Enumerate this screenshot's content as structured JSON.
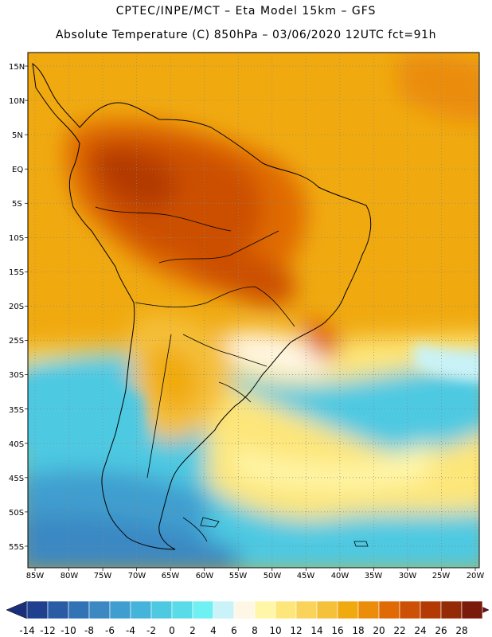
{
  "header": {
    "title_line1": "CPTEC/INPE/MCT –  Eta Model 15km – GFS",
    "title_line2": "Absolute Temperature (C) 850hPa – 03/06/2020 12UTC fct=91h"
  },
  "axes": {
    "lat_labels": [
      "15N",
      "10N",
      "5N",
      "EQ",
      "5S",
      "10S",
      "15S",
      "20S",
      "25S",
      "30S",
      "35S",
      "40S",
      "45S",
      "50S",
      "55S"
    ],
    "lon_labels": [
      "85W",
      "80W",
      "75W",
      "70W",
      "65W",
      "60W",
      "55W",
      "50W",
      "45W",
      "40W",
      "35W",
      "30W",
      "25W",
      "20W"
    ]
  },
  "colorbar": {
    "labels": [
      "-14",
      "-12",
      "-10",
      "-8",
      "-6",
      "-4",
      "-2",
      "0",
      "2",
      "4",
      "6",
      "8",
      "10",
      "12",
      "14",
      "16",
      "18",
      "20",
      "22",
      "24",
      "26",
      "28"
    ],
    "colors": [
      "#1f3f8f",
      "#2a5ca6",
      "#3173b5",
      "#3b88c3",
      "#3f9ecf",
      "#45b4da",
      "#4ec9e2",
      "#5adbe8",
      "#6ff0f2",
      "#c9f3f8",
      "#fff7e6",
      "#fff6a8",
      "#fde67a",
      "#f9d35a",
      "#f5c03a",
      "#f0aa10",
      "#eb8c0a",
      "#e06a05",
      "#cc5006",
      "#b33a05",
      "#952a06",
      "#7a1a0a"
    ]
  }
}
